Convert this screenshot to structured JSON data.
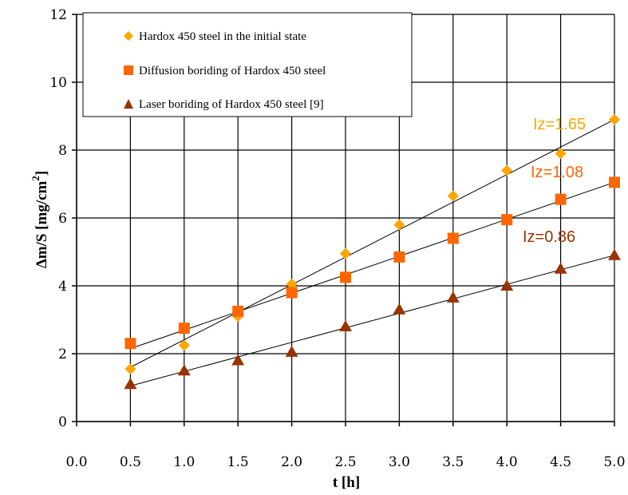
{
  "chart_data": {
    "type": "scatter",
    "xlabel": "t [h]",
    "ylabel_main": "Δm/S [mg/cm",
    "ylabel_sup": "2",
    "ylabel_end": "]",
    "xlim": [
      0.0,
      5.0
    ],
    "ylim": [
      0,
      12
    ],
    "x_ticks": [
      "0.0",
      "0.5",
      "1.0",
      "1.5",
      "2.0",
      "2.5",
      "3.0",
      "3.5",
      "4.0",
      "4.5",
      "5.0"
    ],
    "y_ticks": [
      "0",
      "2",
      "4",
      "6",
      "8",
      "10",
      "12"
    ],
    "grid": true,
    "legend_position": "top-left",
    "x": [
      0.5,
      1.0,
      1.5,
      2.0,
      2.5,
      3.0,
      3.5,
      4.0,
      4.5,
      5.0
    ],
    "series": [
      {
        "name": "Hardox 450 steel in the initial state",
        "marker": "diamond",
        "color": "#ffa500",
        "values": [
          1.55,
          2.25,
          3.1,
          4.05,
          4.95,
          5.8,
          6.65,
          7.4,
          7.9,
          8.9
        ],
        "trendline": [
          0.5,
          1.6,
          5.0,
          8.9
        ],
        "annotation": "Iz=1.65"
      },
      {
        "name": "Diffusion boriding of Hardox 450 steel",
        "marker": "square",
        "color": "#ff6600",
        "values": [
          2.3,
          2.75,
          3.25,
          3.8,
          4.25,
          4.85,
          5.4,
          5.95,
          6.55,
          7.05
        ],
        "trendline": [
          0.5,
          2.15,
          5.0,
          7.05
        ],
        "annotation": "Iz=1.08"
      },
      {
        "name": "Laser boriding of Hardox 450 steel [9]",
        "marker": "triangle",
        "color": "#993300",
        "values": [
          1.1,
          1.5,
          1.8,
          2.05,
          2.8,
          3.3,
          3.65,
          4.0,
          4.5,
          4.9
        ],
        "trendline": [
          0.5,
          1.05,
          5.0,
          4.9
        ],
        "annotation": "Iz=0.86"
      }
    ]
  },
  "annotations": {
    "iz_a": "Iz=1.65",
    "iz_b": "Iz=1.08",
    "iz_c": "Iz=0.86"
  }
}
